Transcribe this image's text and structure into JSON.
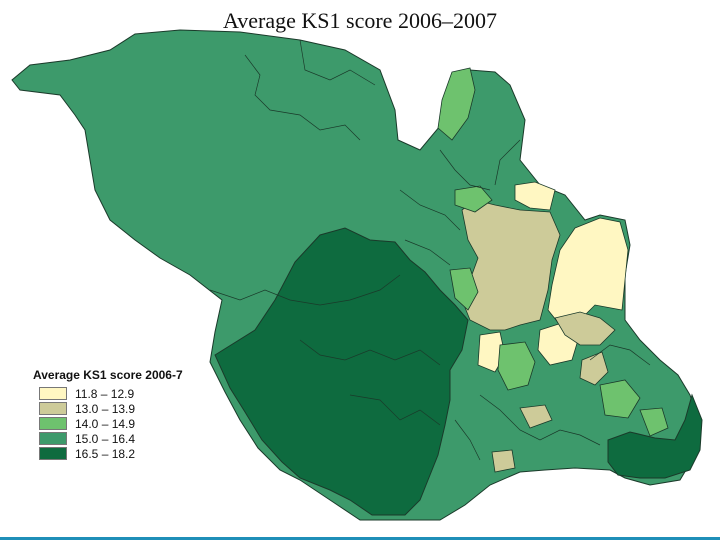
{
  "title": "Average KS1 score 2006–2007",
  "legend": {
    "title": "Average KS1 score 2006-7",
    "items": [
      {
        "label": "11.8 – 12.9",
        "color": "#fff7c2"
      },
      {
        "label": "13.0 – 13.9",
        "color": "#cdcb99"
      },
      {
        "label": "14.0 – 14.9",
        "color": "#6ec26e"
      },
      {
        "label": "15.0 – 16.4",
        "color": "#3d9a6b"
      },
      {
        "label": "16.5 – 18.2",
        "color": "#0e6b3f"
      }
    ]
  },
  "colors": {
    "boundary": "#1a3a2a",
    "accent_rule": "#1f8fb8"
  }
}
